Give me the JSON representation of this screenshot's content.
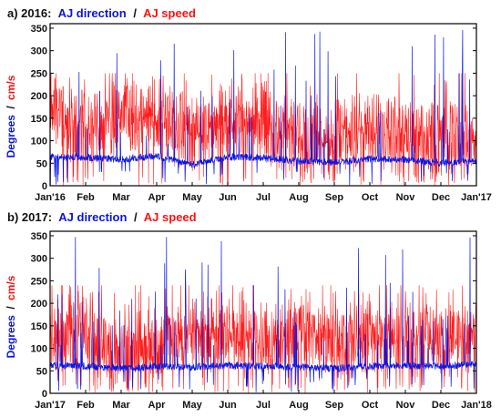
{
  "colors": {
    "direction": "#0a14e6",
    "speed": "#ff1010",
    "axis": "#000000",
    "text": "#111111"
  },
  "chart_data": [
    {
      "type": "line",
      "title": {
        "prefix": "a) 2016:",
        "series1": "AJ direction",
        "sep": "/",
        "series2": "AJ speed"
      },
      "ylabel": {
        "part1": "Degrees",
        "sep": "/",
        "part2": "cm/s"
      },
      "ylim": [
        0,
        360
      ],
      "yticks": [
        "0",
        "50",
        "100",
        "150",
        "200",
        "250",
        "300",
        "350"
      ],
      "xticks": [
        "Jan'16",
        "Feb",
        "Mar",
        "Apr",
        "May",
        "Jun",
        "Jul",
        "Aug",
        "Sep",
        "Oct",
        "Nov",
        "Dec",
        "Jan'17"
      ],
      "grid": false,
      "series": [
        {
          "name": "AJ direction",
          "x_unit": "month",
          "approx_values": [
            65,
            63,
            58,
            66,
            47,
            64,
            62,
            55,
            52,
            60,
            58,
            50,
            55
          ],
          "spikes_to": 350
        },
        {
          "name": "AJ speed",
          "x_unit": "month",
          "approx_values": [
            175,
            120,
            160,
            150,
            115,
            150,
            130,
            105,
            100,
            120,
            110,
            100,
            90
          ],
          "peaks_to": 250
        }
      ]
    },
    {
      "type": "line",
      "title": {
        "prefix": "b) 2017:",
        "series1": "AJ direction",
        "sep": "/",
        "series2": "AJ speed"
      },
      "ylabel": {
        "part1": "Degrees",
        "sep": "/",
        "part2": "cm/s"
      },
      "ylim": [
        0,
        360
      ],
      "yticks": [
        "0",
        "50",
        "100",
        "150",
        "200",
        "250",
        "300",
        "350"
      ],
      "xticks": [
        "Jan'17",
        "Feb",
        "Mar",
        "Apr",
        "May",
        "Jun",
        "Jul",
        "Aug",
        "Sep",
        "Oct",
        "Nov",
        "Dec",
        "Jan'18"
      ],
      "grid": false,
      "series": [
        {
          "name": "AJ direction",
          "x_unit": "month",
          "approx_values": [
            62,
            60,
            55,
            60,
            58,
            62,
            60,
            58,
            55,
            60,
            62,
            60,
            65
          ],
          "spikes_to": 350
        },
        {
          "name": "AJ speed",
          "x_unit": "month",
          "approx_values": [
            110,
            130,
            100,
            100,
            125,
            130,
            115,
            140,
            110,
            125,
            120,
            115,
            120
          ],
          "peaks_to": 240
        }
      ]
    }
  ]
}
